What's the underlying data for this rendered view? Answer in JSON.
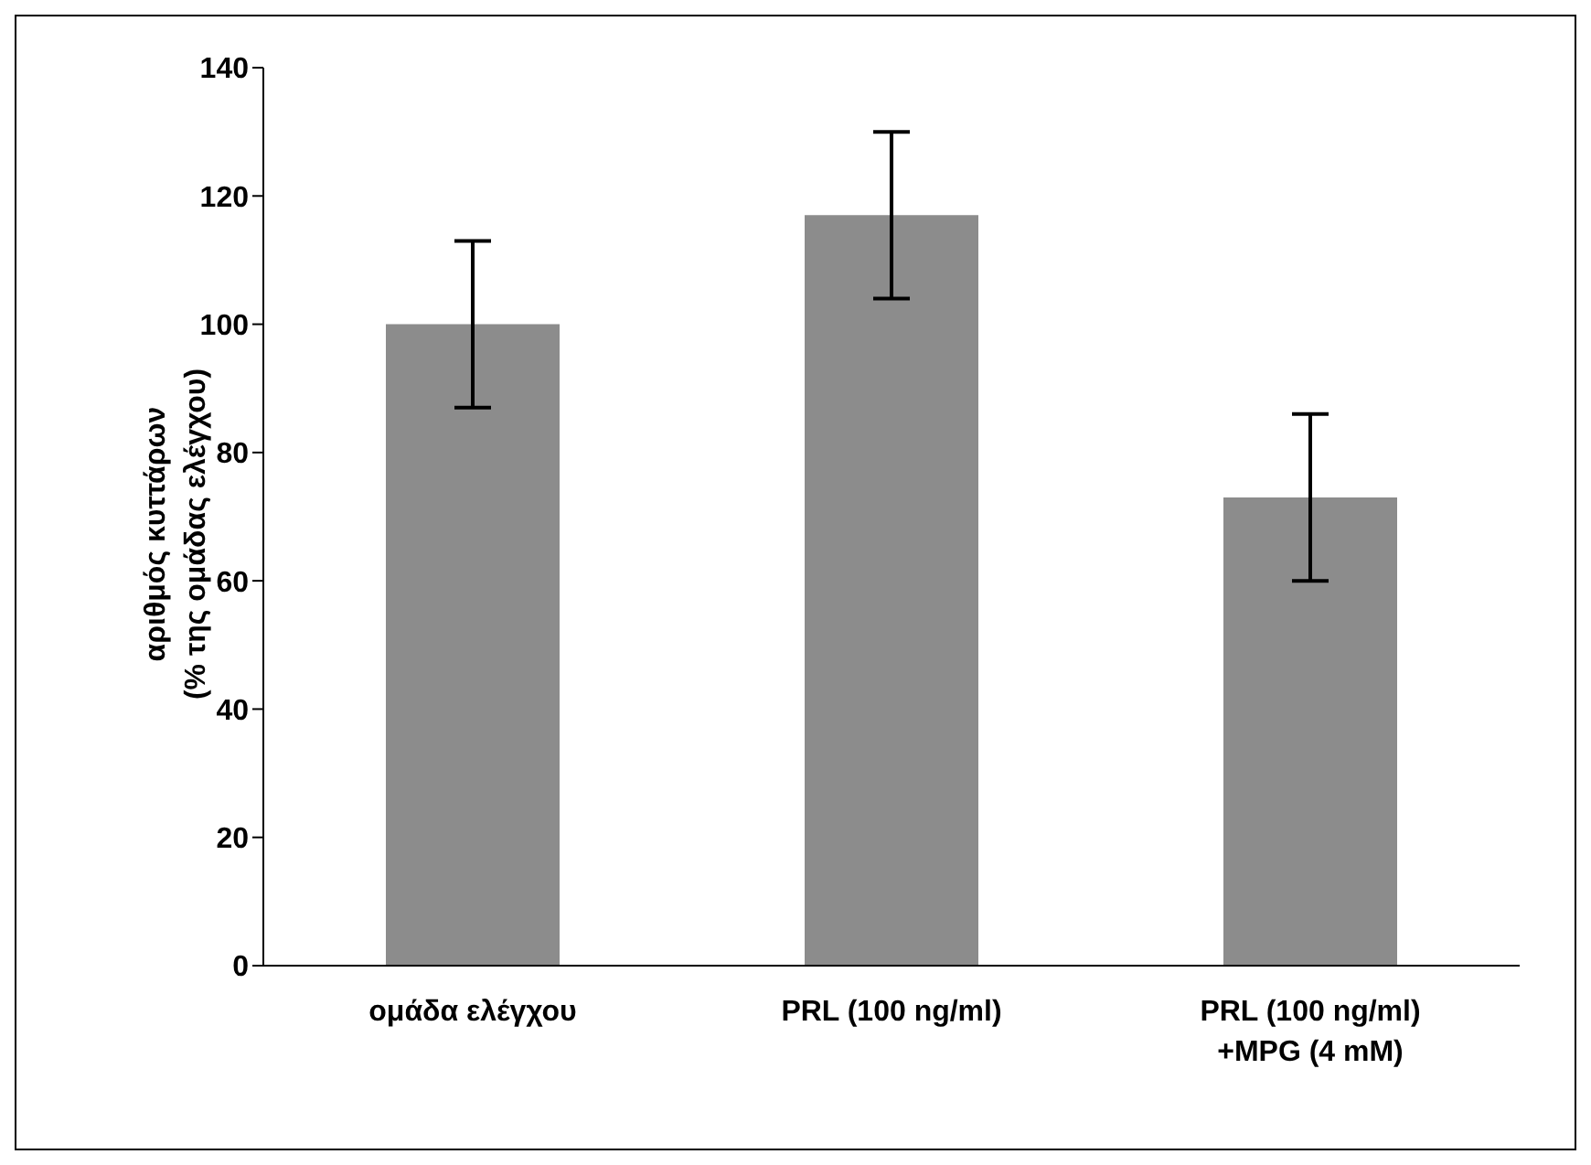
{
  "chart_data": {
    "type": "bar",
    "ylabel": "αριθμός κυττάρων\n(% της ομάδας ελέγχου)",
    "categories": [
      "ομάδα ελέγχου",
      "PRL (100 ng/ml)",
      "PRL (100 ng/ml)\n+MPG (4 mM)"
    ],
    "values": [
      100,
      117,
      73
    ],
    "errors": [
      13,
      13,
      13
    ],
    "color": "#8c8c8c",
    "ylim": [
      0,
      140
    ],
    "yticks": [
      0,
      20,
      40,
      60,
      80,
      100,
      120,
      140
    ],
    "grid": false,
    "legend": false
  }
}
